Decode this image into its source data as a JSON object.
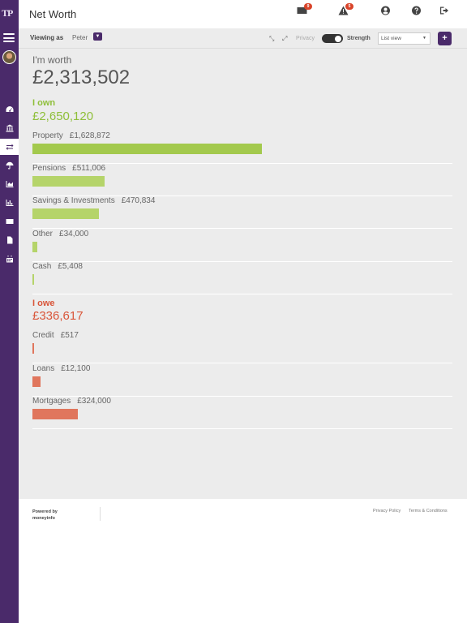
{
  "app": {
    "logo_text": "TP"
  },
  "header": {
    "title": "Net Worth",
    "messages_count": "9",
    "alerts_count": "5"
  },
  "toolbar": {
    "viewing_label": "Viewing as",
    "viewing_name": "Peter",
    "privacy_label": "Privacy",
    "strength_label": "Strength",
    "view_select": "List view",
    "add_label": "+"
  },
  "summary": {
    "worth_label": "I'm worth",
    "worth_value": "£2,313,502"
  },
  "own": {
    "title": "I own",
    "total": "£2,650,120",
    "items": [
      {
        "label": "Property",
        "amount": "£1,628,872",
        "share": 1.0
      },
      {
        "label": "Pensions",
        "amount": "£511,006",
        "share": 0.314
      },
      {
        "label": "Savings & Investments",
        "amount": "£470,834",
        "share": 0.289
      },
      {
        "label": "Other",
        "amount": "£34,000",
        "share": 0.021
      },
      {
        "label": "Cash",
        "amount": "£5,408",
        "share": 0.003
      }
    ]
  },
  "owe": {
    "title": "I owe",
    "total": "£336,617",
    "items": [
      {
        "label": "Credit",
        "amount": "£517",
        "share": 0.002
      },
      {
        "label": "Loans",
        "amount": "£12,100",
        "share": 0.037
      },
      {
        "label": "Mortgages",
        "amount": "£324,000",
        "share": 0.199
      }
    ]
  },
  "footer": {
    "powered_line1": "Powered by",
    "powered_line2": "moneyinfo",
    "privacy_link": "Privacy Policy",
    "terms_link": "Terms & Conditions"
  },
  "colors": {
    "sidebar": "#4a2a6a",
    "own": "#8fbf3a",
    "owe": "#d9563a"
  }
}
